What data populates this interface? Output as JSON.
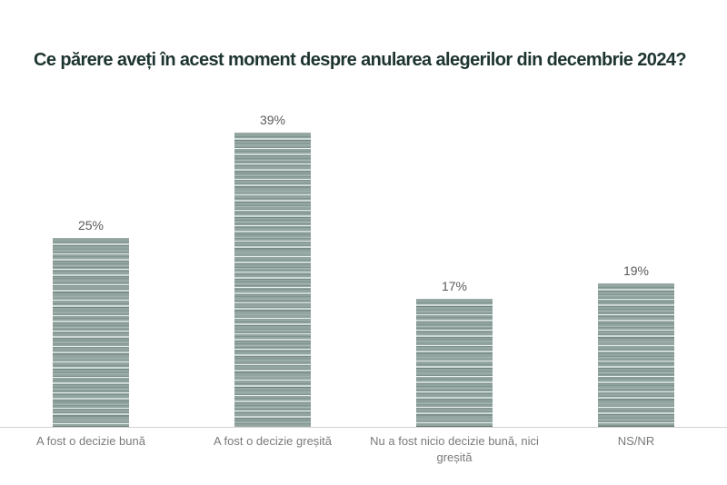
{
  "chart_data": {
    "type": "bar",
    "title": "Ce părere aveți în acest moment despre anularea alegerilor din decembrie 2024?",
    "categories": [
      "A fost o decizie bună",
      "A fost o decizie greșită",
      "Nu a fost nicio decizie bună, nici greșită",
      "NS/NR"
    ],
    "values": [
      25,
      39,
      17,
      19
    ],
    "value_labels": [
      "25%",
      "39%",
      "17%",
      "19%"
    ],
    "unit": "%",
    "xlabel": "",
    "ylabel": "",
    "ylim": [
      0,
      45
    ],
    "y_axis_visible": false,
    "gridlines": false,
    "legend": "none",
    "baseline_axis": "x"
  },
  "colors": {
    "background": "#ffffff",
    "title_text": "#1d3430",
    "bar_base": "#93a5a1",
    "bar_stripe_light": "#dde7e5",
    "bar_stripe_dark": "#637672",
    "axis_line": "#d2d2d2",
    "value_label_text": "#5a5a5a",
    "category_label_text": "#7a7a7a"
  }
}
